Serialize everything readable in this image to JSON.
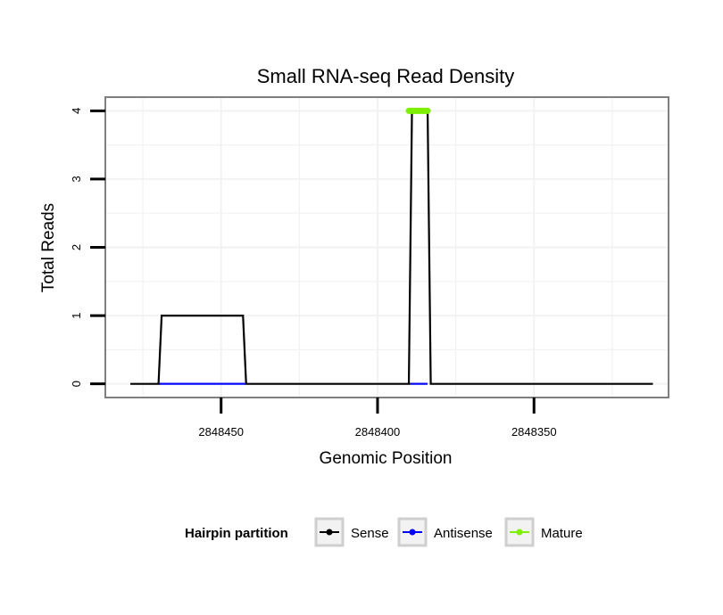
{
  "chart_data": {
    "type": "line",
    "title": "Small RNA-seq Read Density",
    "xlabel": "Genomic Position",
    "ylabel": "Total Reads",
    "x_reversed": true,
    "xlim": [
      2848487,
      2848307
    ],
    "ylim": [
      -0.2,
      4.2
    ],
    "xticks": [
      2848450,
      2848400,
      2848350
    ],
    "xtick_labels": [
      "2848450",
      "2848400",
      "2848350"
    ],
    "yticks": [
      0,
      1,
      2,
      3,
      4
    ],
    "ytick_labels": [
      "0",
      "1",
      "2",
      "3",
      "4"
    ],
    "grid": true,
    "series": [
      {
        "name": "Sense",
        "color": "#000000",
        "x": [
          2848479,
          2848470,
          2848469,
          2848443,
          2848442,
          2848390,
          2848389,
          2848384,
          2848383,
          2848312
        ],
        "y": [
          0,
          0,
          1,
          1,
          0,
          0,
          4,
          4,
          0,
          0
        ]
      },
      {
        "name": "Antisense",
        "color": "#0000ff",
        "x": [
          2848470,
          2848442
        ],
        "y": [
          0,
          0
        ],
        "segments": [
          [
            2848470,
            2848442
          ],
          [
            2848390,
            2848384
          ]
        ]
      },
      {
        "name": "Mature",
        "color": "#7fef00",
        "x": [
          2848390,
          2848384
        ],
        "y": [
          4,
          4
        ]
      }
    ],
    "legend": {
      "title": "Hairpin partition",
      "position": "bottom",
      "entries": [
        "Sense",
        "Antisense",
        "Mature"
      ]
    }
  }
}
